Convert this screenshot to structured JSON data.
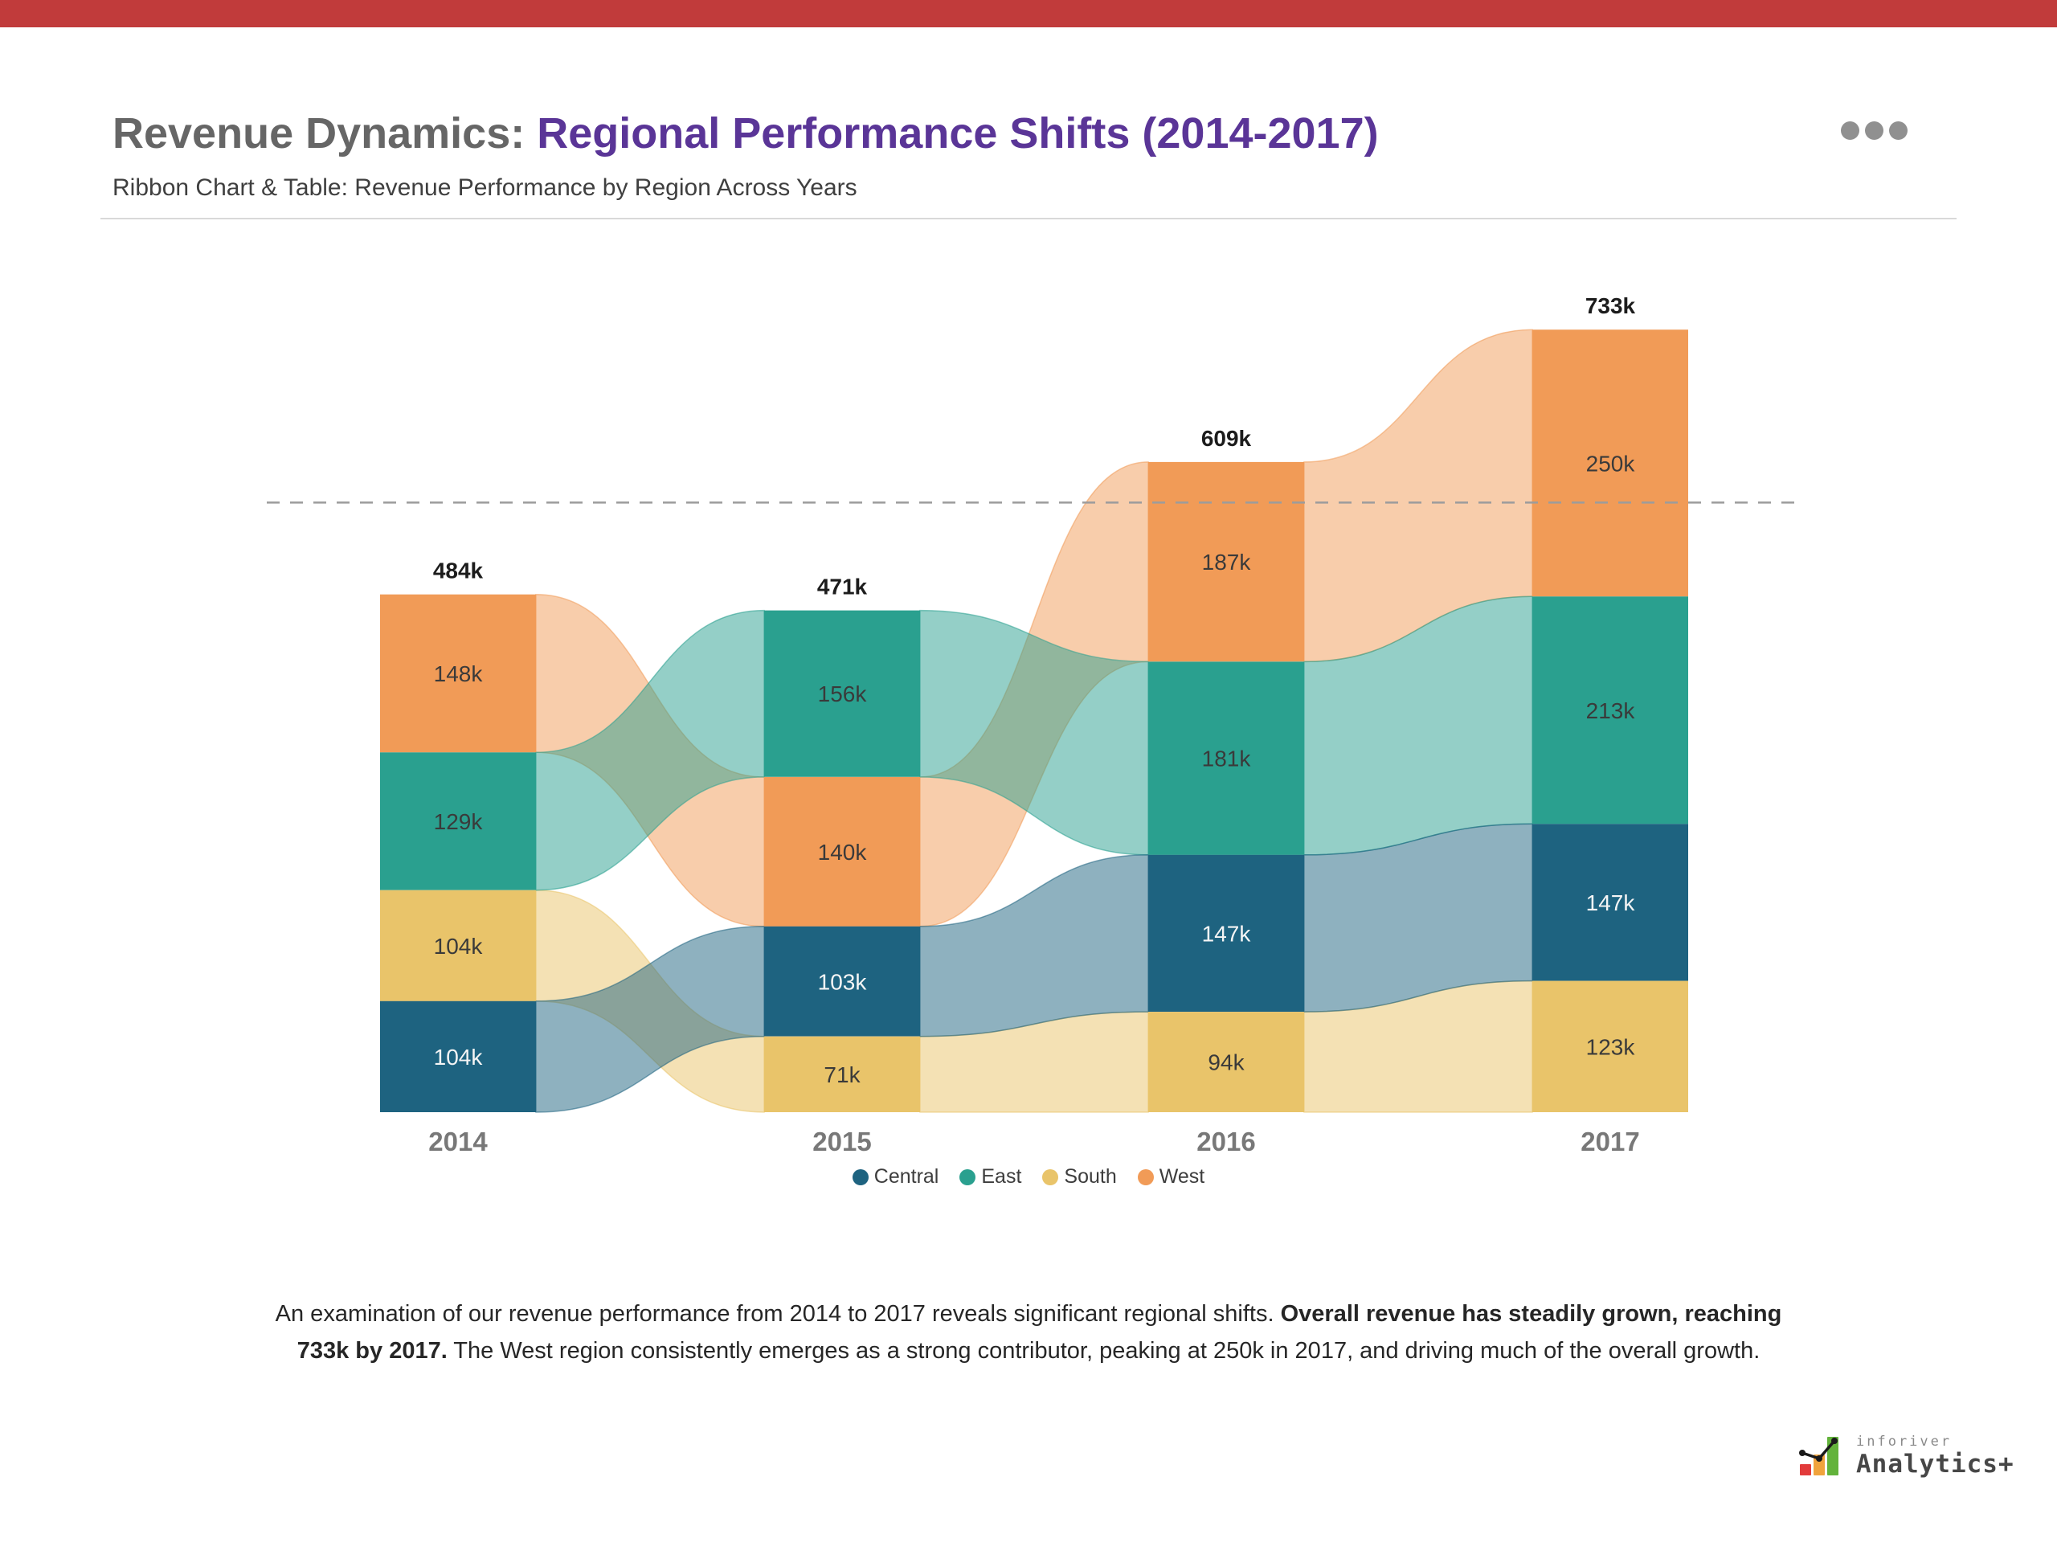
{
  "header": {
    "title_prefix": "Revenue Dynamics: ",
    "title_highlight": "Regional Performance Shifts (2014-2017)",
    "subtitle": "Ribbon Chart & Table: Revenue Performance by Region Across Years",
    "menu_icon": "more-options-ellipsis"
  },
  "chart_data": {
    "type": "ribbon",
    "title": "Revenue Performance by Region Across Years",
    "categories": [
      "2014",
      "2015",
      "2016",
      "2017"
    ],
    "unit": "k",
    "series": [
      {
        "name": "Central",
        "color": "#1E6380",
        "label_color": "#F5F5F5",
        "values": [
          104,
          103,
          147,
          147
        ]
      },
      {
        "name": "East",
        "color": "#2AA08F",
        "label_color": "#3A3A3A",
        "values": [
          129,
          156,
          181,
          213
        ]
      },
      {
        "name": "South",
        "color": "#E9C46A",
        "label_color": "#3A3A3A",
        "values": [
          104,
          71,
          94,
          123
        ]
      },
      {
        "name": "West",
        "color": "#F19B57",
        "label_color": "#3A3A3A",
        "values": [
          148,
          140,
          187,
          250
        ]
      }
    ],
    "stack_order_top_to_bottom": [
      [
        "West",
        "East",
        "South",
        "Central"
      ],
      [
        "East",
        "West",
        "Central",
        "South"
      ],
      [
        "West",
        "East",
        "Central",
        "South"
      ],
      [
        "West",
        "East",
        "Central",
        "South"
      ]
    ],
    "totals": [
      484,
      471,
      609,
      733
    ],
    "total_labels": [
      "484k",
      "471k",
      "609k",
      "733k"
    ],
    "segment_labels": {
      "2014": [
        "148k",
        "129k",
        "104k",
        "104k"
      ],
      "2015": [
        "156k",
        "140k",
        "103k",
        "71k"
      ],
      "2016": [
        "187k",
        "181k",
        "147k",
        "94k"
      ],
      "2017": [
        "250k",
        "213k",
        "147k",
        "123k"
      ]
    },
    "reference_line": {
      "style": "dashed",
      "color": "#9C9C9C",
      "approx_value_k": 571,
      "note": "unlabeled dashed reference line (~average of yearly totals)"
    },
    "legend_position": "bottom",
    "grid": false
  },
  "legend": {
    "items": [
      {
        "label": "Central",
        "color": "#1E6380"
      },
      {
        "label": "East",
        "color": "#2AA08F"
      },
      {
        "label": "South",
        "color": "#E9C46A"
      },
      {
        "label": "West",
        "color": "#F19B57"
      }
    ]
  },
  "footer": {
    "line1_normal": "An examination of our revenue performance from 2014 to 2017 reveals significant regional shifts. ",
    "line1_bold": "Overall revenue has steadily grown, reaching",
    "line2_bold": "733k by 2017.",
    "line2_normal": " The West region consistently emerges as a strong contributor, peaking at 250k in 2017, and driving much of the overall growth."
  },
  "brand": {
    "name": "inforiver",
    "product": "Analytics+"
  },
  "colors": {
    "top_bar": "#C13B3B",
    "title_gray": "#666666",
    "title_purple": "#5A3597",
    "year_label": "#787878",
    "total_label": "#1C1C1C"
  }
}
